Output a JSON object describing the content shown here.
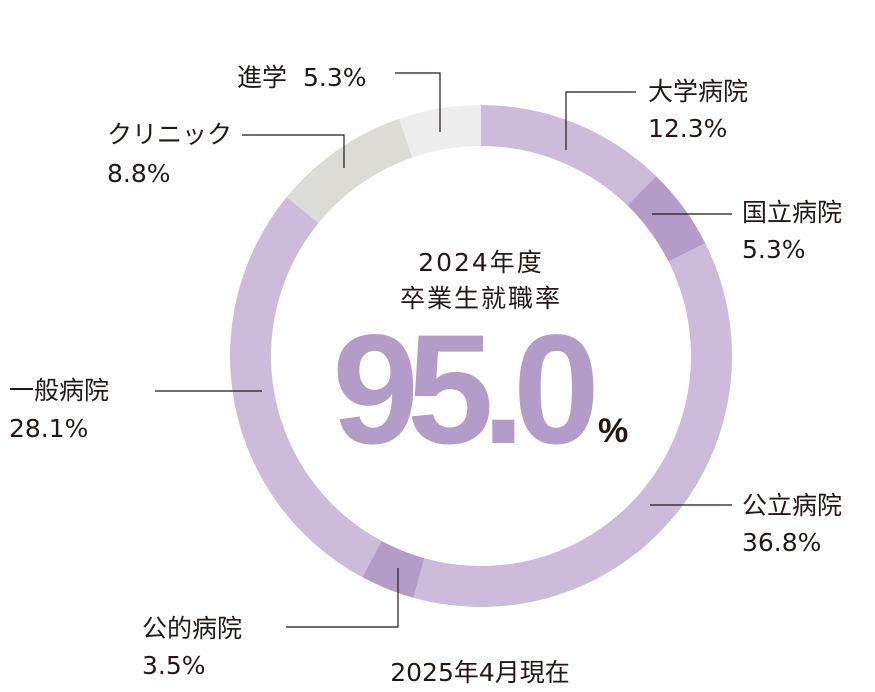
{
  "chart_data": {
    "type": "pie",
    "subtype": "donut",
    "title_line1": "2024年度",
    "title_line2": "卒業生就職率",
    "center_value": "95.0",
    "center_unit": "%",
    "footnote": "2025年4月現在",
    "slices": [
      {
        "label": "大学病院",
        "value_text": "12.3%",
        "value": 12.3,
        "color": "#cdbbdc"
      },
      {
        "label": "国立病院",
        "value_text": "5.3%",
        "value": 5.3,
        "color": "#b39cc8"
      },
      {
        "label": "公立病院",
        "value_text": "36.8%",
        "value": 36.8,
        "color": "#cdbbdc"
      },
      {
        "label": "公的病院",
        "value_text": "3.5%",
        "value": 3.5,
        "color": "#b39cc8"
      },
      {
        "label": "一般病院",
        "value_text": "28.1%",
        "value": 28.1,
        "color": "#cdbbdc"
      },
      {
        "label": "クリニック",
        "value_text": "8.8%",
        "value": 8.8,
        "color": "#dcdbd5"
      },
      {
        "label": "進学",
        "value_text": "5.3%",
        "value": 5.3,
        "color": "#ededed"
      }
    ],
    "accent_color": "#b39cc8",
    "text_color": "#231815"
  }
}
